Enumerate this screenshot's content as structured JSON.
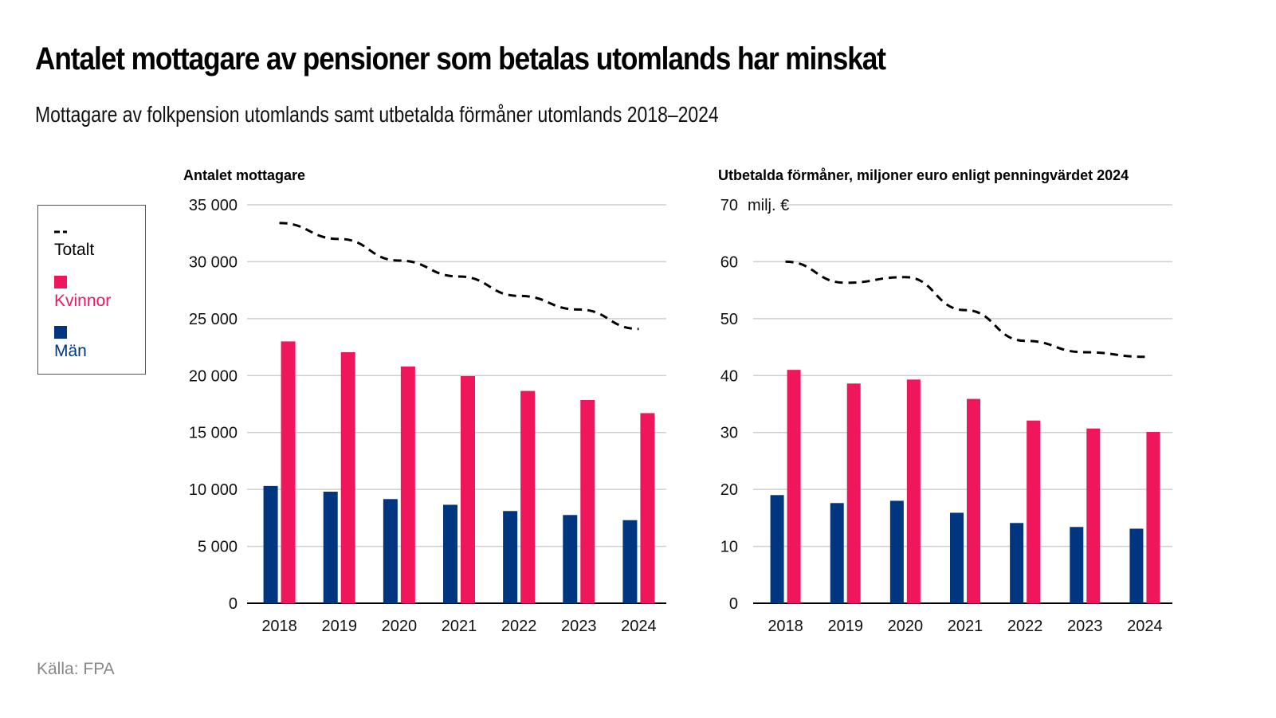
{
  "title": "Antalet mottagare av pensioner som betalas utomlands har minskat",
  "subtitle": "Mottagare av folkpension utomlands samt utbetalda förmåner utomlands 2018–2024",
  "legend": {
    "total_label": "Totalt",
    "women_label": "Kvinnor",
    "men_label": "Män"
  },
  "colors": {
    "women": "#ef165c",
    "men": "#00357f",
    "total": "#000000",
    "grid": "#cccccc"
  },
  "source": "Källa: FPA",
  "chart_data": [
    {
      "type": "bar",
      "title": "Antalet mottagare",
      "xlabel": "",
      "ylabel": "Antalet mottagare",
      "unit_label": "",
      "categories": [
        "2018",
        "2019",
        "2020",
        "2021",
        "2022",
        "2023",
        "2024"
      ],
      "ylim": [
        0,
        35000
      ],
      "yticks": [
        0,
        5000,
        10000,
        15000,
        20000,
        25000,
        30000,
        35000
      ],
      "ytick_labels": [
        "0",
        "5 000",
        "10 000",
        "15 000",
        "20 000",
        "25 000",
        "30 000",
        "35 000"
      ],
      "grid": true,
      "legend_position": "left",
      "series": [
        {
          "name": "Män",
          "type": "bar",
          "values": [
            10300,
            9800,
            9150,
            8650,
            8100,
            7750,
            7300
          ]
        },
        {
          "name": "Kvinnor",
          "type": "bar",
          "values": [
            23000,
            22050,
            20800,
            19950,
            18650,
            17850,
            16700
          ]
        },
        {
          "name": "Totalt",
          "type": "line",
          "style": "dashed",
          "values": [
            33400,
            32000,
            30100,
            28700,
            27000,
            25800,
            24100
          ]
        }
      ]
    },
    {
      "type": "bar",
      "title": "Utbetalda förmåner, miljoner euro enligt penningvärdet 2024",
      "xlabel": "",
      "ylabel": "Utbetalda förmåner, miljoner euro",
      "unit_label": "milj. €",
      "categories": [
        "2018",
        "2019",
        "2020",
        "2021",
        "2022",
        "2023",
        "2024"
      ],
      "ylim": [
        0,
        70
      ],
      "yticks": [
        0,
        10,
        20,
        30,
        40,
        50,
        60,
        70
      ],
      "ytick_labels": [
        "0",
        "10",
        "20",
        "30",
        "40",
        "50",
        "60",
        "70"
      ],
      "grid": true,
      "legend_position": "left",
      "series": [
        {
          "name": "Män",
          "type": "bar",
          "values": [
            19.0,
            17.6,
            18.0,
            15.9,
            14.1,
            13.4,
            13.1
          ]
        },
        {
          "name": "Kvinnor",
          "type": "bar",
          "values": [
            41.0,
            38.6,
            39.3,
            35.9,
            32.1,
            30.7,
            30.1
          ]
        },
        {
          "name": "Totalt",
          "type": "line",
          "style": "dashed",
          "values": [
            60.0,
            56.3,
            57.3,
            51.5,
            46.1,
            44.1,
            43.3
          ]
        }
      ]
    }
  ]
}
